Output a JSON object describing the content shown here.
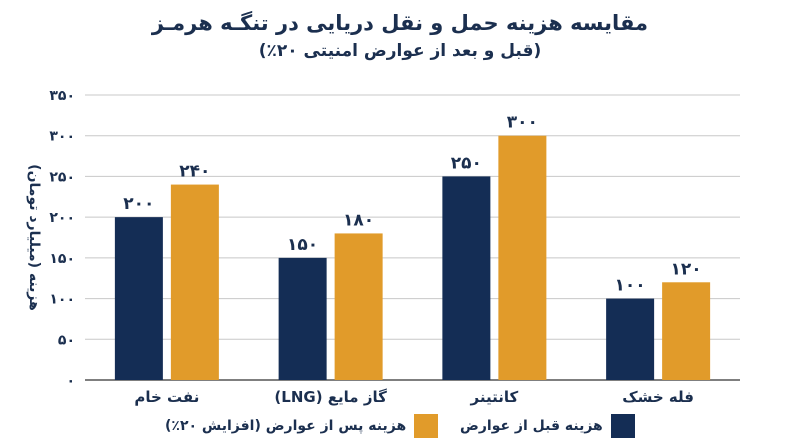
{
  "chart_data": {
    "type": "bar",
    "title": "مقایسه هزینه حمل و نقل دریایی در تنگـه هرمـز",
    "subtitle": "(قبل و بعد از عوارض امنیتی ۲۰٪)",
    "ylabel": "هزینه (میلیارد تومان)",
    "xlabel": "",
    "ylim": [
      0,
      350
    ],
    "yticks": [
      0,
      50,
      100,
      150,
      200,
      250,
      300,
      350
    ],
    "ytick_labels": [
      "۰",
      "۵۰",
      "۱۰۰",
      "۱۵۰",
      "۲۰۰",
      "۲۵۰",
      "۳۰۰",
      "۳۵۰"
    ],
    "grid": true,
    "legend_position": "bottom",
    "categories": [
      "نفت خام",
      "گاز مایع (LNG)",
      "کانتینر",
      "فله خشک"
    ],
    "series": [
      {
        "name": "هزینه قبل از عوارض",
        "color": "#142d55",
        "values": [
          200,
          150,
          250,
          100
        ],
        "labels": [
          "۲۰۰",
          "۱۵۰",
          "۲۵۰",
          "۱۰۰"
        ]
      },
      {
        "name": "هزینه پس از عوارض (افزایش ۲۰٪)",
        "color": "#e19b2a",
        "values": [
          240,
          180,
          300,
          120
        ],
        "labels": [
          "۲۴۰",
          "۱۸۰",
          "۳۰۰",
          "۱۲۰"
        ]
      }
    ]
  }
}
